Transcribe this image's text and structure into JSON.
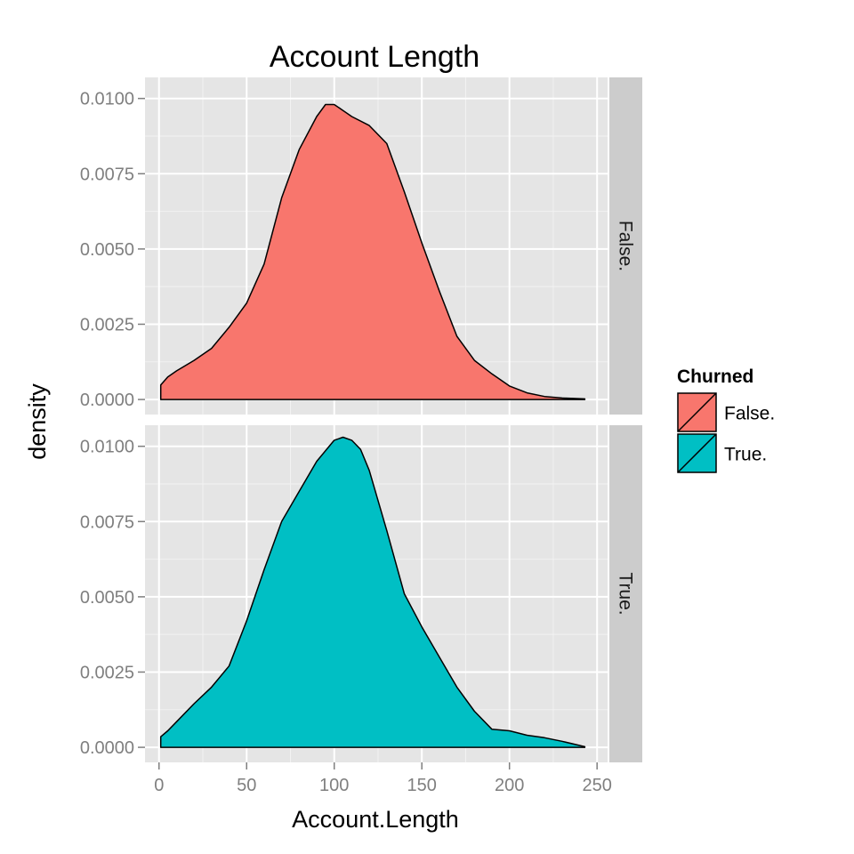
{
  "chart_data": {
    "type": "area",
    "title": "Account Length",
    "xlabel": "Account.Length",
    "ylabel": "density",
    "xlim": [
      -8,
      256
    ],
    "ylim": [
      -0.0005,
      0.0107
    ],
    "x_ticks": [
      0,
      50,
      100,
      150,
      200,
      250
    ],
    "x_tick_labels": [
      "0",
      "50",
      "100",
      "150",
      "200",
      "250"
    ],
    "y_ticks": [
      0,
      0.0025,
      0.005,
      0.0075,
      0.01
    ],
    "y_tick_labels": [
      "0.0000",
      "0.0025",
      "0.0050",
      "0.0075",
      "0.0100"
    ],
    "grid": true,
    "facet": "rows",
    "legend": {
      "title": "Churned",
      "position": "right"
    },
    "series": [
      {
        "name": "False.",
        "color": "#F8766D",
        "x": [
          1,
          5,
          10,
          20,
          30,
          40,
          50,
          60,
          70,
          80,
          90,
          95,
          100,
          105,
          110,
          120,
          130,
          140,
          150,
          160,
          170,
          180,
          190,
          200,
          210,
          220,
          230,
          243
        ],
        "y": [
          0.00048,
          0.00075,
          0.00095,
          0.0013,
          0.0017,
          0.0024,
          0.0032,
          0.0045,
          0.0067,
          0.0083,
          0.0094,
          0.0098,
          0.0098,
          0.0096,
          0.0094,
          0.0091,
          0.0085,
          0.0069,
          0.0052,
          0.0036,
          0.0021,
          0.0013,
          0.00085,
          0.00045,
          0.00022,
          0.0001,
          5e-05,
          2e-05
        ]
      },
      {
        "name": "True.",
        "color": "#00BFC4",
        "x": [
          1,
          5,
          10,
          20,
          30,
          40,
          50,
          60,
          70,
          80,
          90,
          100,
          105,
          110,
          115,
          120,
          130,
          140,
          150,
          160,
          170,
          180,
          190,
          200,
          210,
          220,
          230,
          243
        ],
        "y": [
          0.00035,
          0.00055,
          0.00085,
          0.00145,
          0.002,
          0.0027,
          0.0042,
          0.0059,
          0.0075,
          0.0085,
          0.0095,
          0.0102,
          0.0103,
          0.0102,
          0.0099,
          0.0092,
          0.0072,
          0.0051,
          0.004,
          0.003,
          0.002,
          0.0012,
          0.0006,
          0.00055,
          0.0004,
          0.00032,
          0.0002,
          2e-05
        ]
      }
    ]
  }
}
